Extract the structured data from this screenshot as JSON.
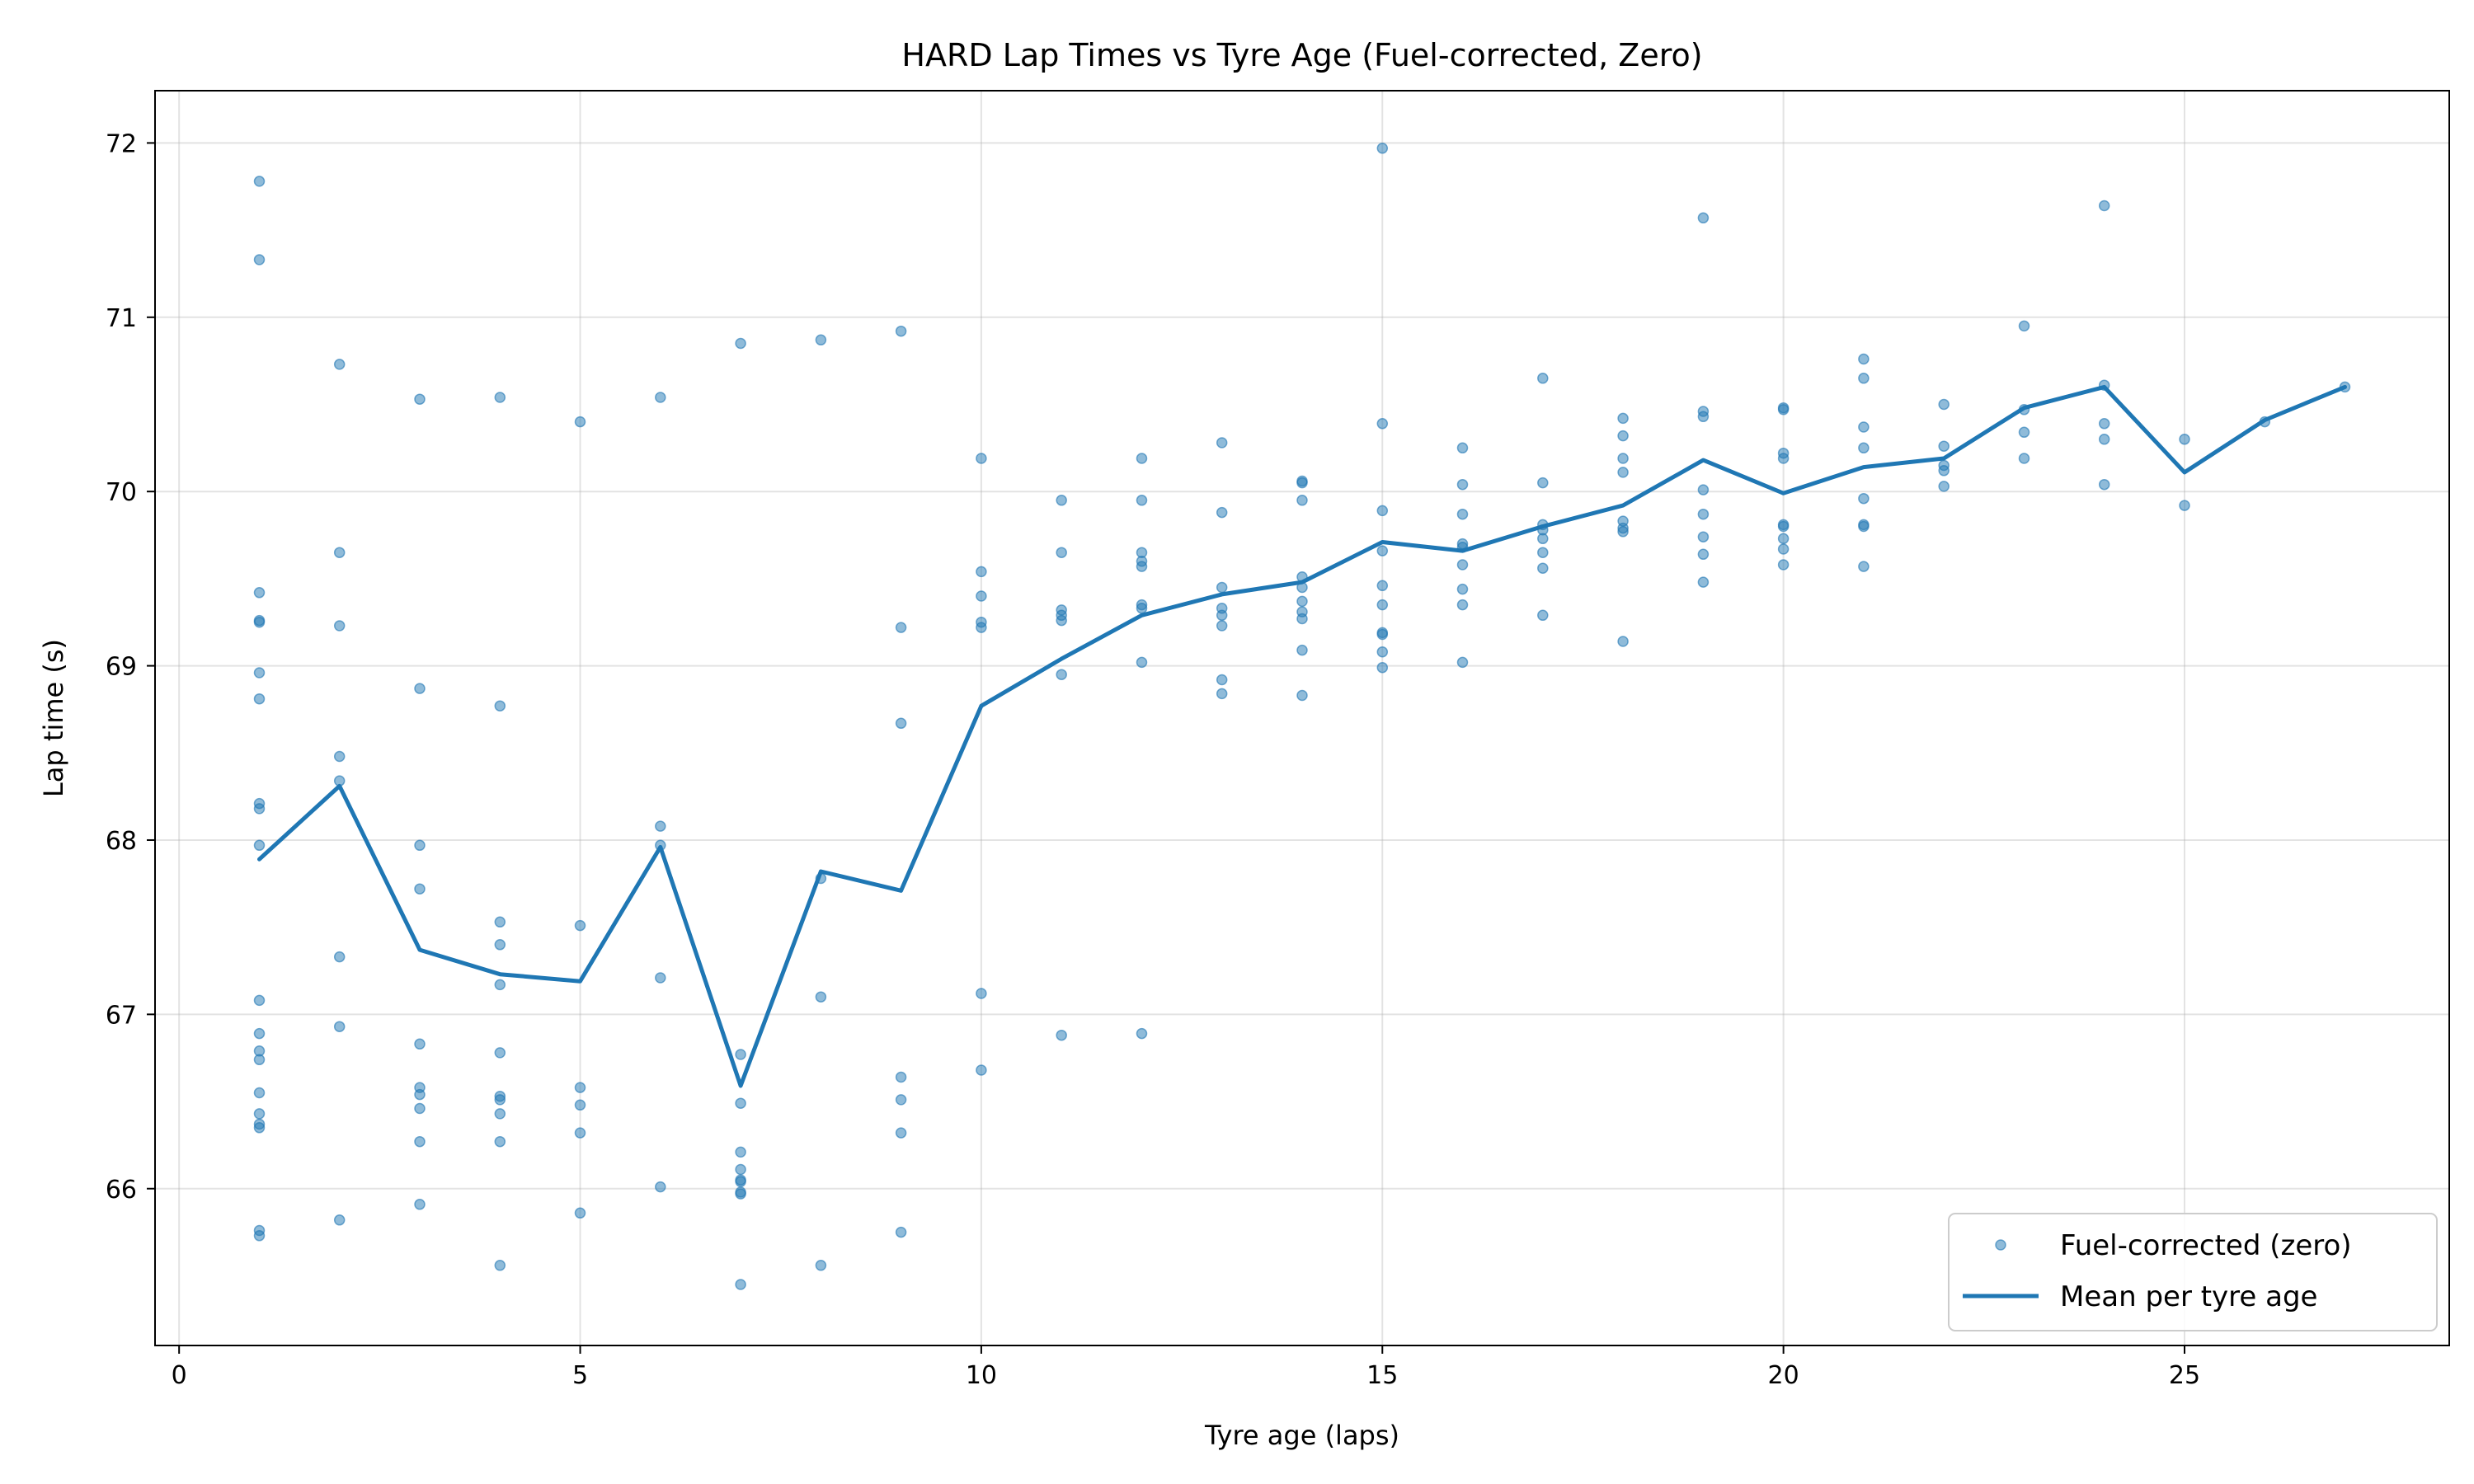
{
  "chart_data": {
    "type": "scatter",
    "title": "HARD Lap Times vs Tyre Age (Fuel-corrected, Zero)",
    "xlabel": "Tyre age (laps)",
    "ylabel": "Lap time (s)",
    "xlim": [
      -0.3,
      28.3
    ],
    "ylim": [
      65.1,
      72.3
    ],
    "xticks": [
      0,
      5,
      10,
      15,
      20,
      25
    ],
    "yticks": [
      66,
      67,
      68,
      69,
      70,
      71,
      72
    ],
    "grid": true,
    "legend_position": "lower-right",
    "colors": {
      "series": "#1f77b4"
    },
    "series": [
      {
        "name": "Fuel-corrected (zero)",
        "kind": "scatter",
        "points": [
          [
            1,
            71.78
          ],
          [
            1,
            71.33
          ],
          [
            1,
            69.42
          ],
          [
            1,
            69.26
          ],
          [
            1,
            69.25
          ],
          [
            1,
            68.96
          ],
          [
            1,
            68.81
          ],
          [
            1,
            68.21
          ],
          [
            1,
            68.18
          ],
          [
            1,
            67.97
          ],
          [
            1,
            67.08
          ],
          [
            1,
            66.89
          ],
          [
            1,
            66.79
          ],
          [
            1,
            66.74
          ],
          [
            1,
            66.55
          ],
          [
            1,
            66.43
          ],
          [
            1,
            66.37
          ],
          [
            1,
            66.35
          ],
          [
            1,
            65.76
          ],
          [
            1,
            65.73
          ],
          [
            2,
            70.73
          ],
          [
            2,
            69.65
          ],
          [
            2,
            69.23
          ],
          [
            2,
            68.48
          ],
          [
            2,
            68.34
          ],
          [
            2,
            67.33
          ],
          [
            2,
            66.93
          ],
          [
            2,
            65.82
          ],
          [
            3,
            70.53
          ],
          [
            3,
            68.87
          ],
          [
            3,
            67.97
          ],
          [
            3,
            67.72
          ],
          [
            3,
            66.83
          ],
          [
            3,
            66.58
          ],
          [
            3,
            66.54
          ],
          [
            3,
            66.46
          ],
          [
            3,
            66.27
          ],
          [
            3,
            65.91
          ],
          [
            4,
            70.54
          ],
          [
            4,
            68.77
          ],
          [
            4,
            67.53
          ],
          [
            4,
            67.4
          ],
          [
            4,
            67.17
          ],
          [
            4,
            66.78
          ],
          [
            4,
            66.53
          ],
          [
            4,
            66.51
          ],
          [
            4,
            66.43
          ],
          [
            4,
            66.27
          ],
          [
            4,
            65.56
          ],
          [
            5,
            70.4
          ],
          [
            5,
            67.51
          ],
          [
            5,
            66.58
          ],
          [
            5,
            66.48
          ],
          [
            5,
            66.32
          ],
          [
            5,
            65.86
          ],
          [
            6,
            70.54
          ],
          [
            6,
            68.08
          ],
          [
            6,
            67.97
          ],
          [
            6,
            67.21
          ],
          [
            6,
            66.01
          ],
          [
            7,
            70.85
          ],
          [
            7,
            66.77
          ],
          [
            7,
            66.49
          ],
          [
            7,
            66.21
          ],
          [
            7,
            66.11
          ],
          [
            7,
            66.05
          ],
          [
            7,
            66.04
          ],
          [
            7,
            65.98
          ],
          [
            7,
            65.97
          ],
          [
            7,
            65.45
          ],
          [
            8,
            70.87
          ],
          [
            8,
            67.78
          ],
          [
            8,
            67.1
          ],
          [
            8,
            65.56
          ],
          [
            9,
            70.92
          ],
          [
            9,
            69.22
          ],
          [
            9,
            68.67
          ],
          [
            9,
            66.64
          ],
          [
            9,
            66.51
          ],
          [
            9,
            66.32
          ],
          [
            9,
            65.75
          ],
          [
            10,
            70.19
          ],
          [
            10,
            69.54
          ],
          [
            10,
            69.4
          ],
          [
            10,
            69.25
          ],
          [
            10,
            69.22
          ],
          [
            10,
            67.12
          ],
          [
            10,
            66.68
          ],
          [
            11,
            69.95
          ],
          [
            11,
            69.65
          ],
          [
            11,
            69.32
          ],
          [
            11,
            69.29
          ],
          [
            11,
            69.26
          ],
          [
            11,
            68.95
          ],
          [
            11,
            66.88
          ],
          [
            12,
            70.19
          ],
          [
            12,
            69.95
          ],
          [
            12,
            69.65
          ],
          [
            12,
            69.6
          ],
          [
            12,
            69.57
          ],
          [
            12,
            69.35
          ],
          [
            12,
            69.33
          ],
          [
            12,
            69.02
          ],
          [
            12,
            66.89
          ],
          [
            13,
            70.28
          ],
          [
            13,
            69.88
          ],
          [
            13,
            69.45
          ],
          [
            13,
            69.33
          ],
          [
            13,
            69.29
          ],
          [
            13,
            69.23
          ],
          [
            13,
            68.92
          ],
          [
            13,
            68.84
          ],
          [
            14,
            70.06
          ],
          [
            14,
            70.05
          ],
          [
            14,
            69.95
          ],
          [
            14,
            69.51
          ],
          [
            14,
            69.45
          ],
          [
            14,
            69.37
          ],
          [
            14,
            69.31
          ],
          [
            14,
            69.27
          ],
          [
            14,
            69.09
          ],
          [
            14,
            68.83
          ],
          [
            15,
            71.97
          ],
          [
            15,
            70.39
          ],
          [
            15,
            69.89
          ],
          [
            15,
            69.66
          ],
          [
            15,
            69.46
          ],
          [
            15,
            69.35
          ],
          [
            15,
            69.19
          ],
          [
            15,
            69.18
          ],
          [
            15,
            69.08
          ],
          [
            15,
            68.99
          ],
          [
            16,
            70.25
          ],
          [
            16,
            70.04
          ],
          [
            16,
            69.87
          ],
          [
            16,
            69.7
          ],
          [
            16,
            69.68
          ],
          [
            16,
            69.58
          ],
          [
            16,
            69.44
          ],
          [
            16,
            69.35
          ],
          [
            16,
            69.02
          ],
          [
            17,
            70.65
          ],
          [
            17,
            70.05
          ],
          [
            17,
            69.81
          ],
          [
            17,
            69.78
          ],
          [
            17,
            69.73
          ],
          [
            17,
            69.65
          ],
          [
            17,
            69.56
          ],
          [
            17,
            69.29
          ],
          [
            18,
            70.42
          ],
          [
            18,
            70.32
          ],
          [
            18,
            70.19
          ],
          [
            18,
            70.11
          ],
          [
            18,
            69.83
          ],
          [
            18,
            69.79
          ],
          [
            18,
            69.77
          ],
          [
            18,
            69.14
          ],
          [
            19,
            71.57
          ],
          [
            19,
            70.46
          ],
          [
            19,
            70.43
          ],
          [
            19,
            70.01
          ],
          [
            19,
            69.87
          ],
          [
            19,
            69.74
          ],
          [
            19,
            69.64
          ],
          [
            19,
            69.48
          ],
          [
            20,
            70.48
          ],
          [
            20,
            70.47
          ],
          [
            20,
            70.22
          ],
          [
            20,
            70.19
          ],
          [
            20,
            69.81
          ],
          [
            20,
            69.8
          ],
          [
            20,
            69.73
          ],
          [
            20,
            69.67
          ],
          [
            20,
            69.58
          ],
          [
            21,
            70.76
          ],
          [
            21,
            70.65
          ],
          [
            21,
            70.37
          ],
          [
            21,
            70.25
          ],
          [
            21,
            69.96
          ],
          [
            21,
            69.81
          ],
          [
            21,
            69.8
          ],
          [
            21,
            69.57
          ],
          [
            22,
            70.5
          ],
          [
            22,
            70.26
          ],
          [
            22,
            70.15
          ],
          [
            22,
            70.12
          ],
          [
            22,
            70.03
          ],
          [
            23,
            70.95
          ],
          [
            23,
            70.47
          ],
          [
            23,
            70.34
          ],
          [
            23,
            70.19
          ],
          [
            24,
            71.64
          ],
          [
            24,
            70.61
          ],
          [
            24,
            70.39
          ],
          [
            24,
            70.3
          ],
          [
            24,
            70.04
          ],
          [
            25,
            70.3
          ],
          [
            25,
            69.92
          ],
          [
            26,
            70.4
          ],
          [
            27,
            70.6
          ]
        ]
      },
      {
        "name": "Mean per tyre age",
        "kind": "line",
        "x": [
          1,
          2,
          3,
          4,
          5,
          6,
          7,
          8,
          9,
          10,
          11,
          12,
          13,
          14,
          15,
          16,
          17,
          18,
          19,
          20,
          21,
          22,
          23,
          24,
          25,
          26,
          27
        ],
        "y": [
          67.89,
          68.31,
          67.37,
          67.23,
          67.19,
          67.96,
          66.59,
          67.82,
          67.71,
          68.77,
          69.04,
          69.29,
          69.41,
          69.48,
          69.71,
          69.66,
          69.8,
          69.92,
          70.18,
          69.99,
          70.14,
          70.19,
          70.48,
          70.6,
          70.11,
          70.41,
          70.6
        ]
      }
    ]
  }
}
